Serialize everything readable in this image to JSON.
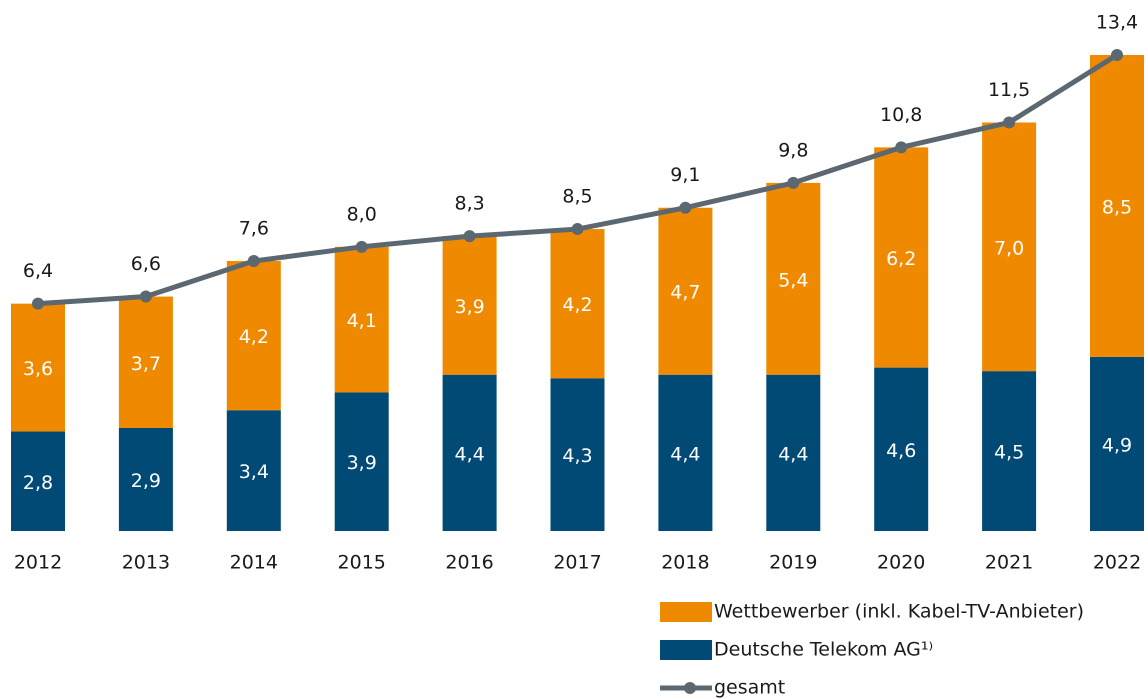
{
  "chart_data": {
    "type": "bar",
    "stacked": true,
    "categories": [
      "2012",
      "2013",
      "2014",
      "2015",
      "2016",
      "2017",
      "2018",
      "2019",
      "2020",
      "2021",
      "2022"
    ],
    "series": [
      {
        "name": "Deutsche Telekom AG¹⁾",
        "color": "#004a75",
        "values": [
          2.8,
          2.9,
          3.4,
          3.9,
          4.4,
          4.3,
          4.4,
          4.4,
          4.6,
          4.5,
          4.9
        ],
        "value_labels": [
          "2,8",
          "2,9",
          "3,4",
          "3,9",
          "4,4",
          "4,3",
          "4,4",
          "4,4",
          "4,6",
          "4,5",
          "4,9"
        ]
      },
      {
        "name": "Wettbewerber (inkl. Kabel-TV-Anbieter)",
        "color": "#ef8a00",
        "values": [
          3.6,
          3.7,
          4.2,
          4.1,
          3.9,
          4.2,
          4.7,
          5.4,
          6.2,
          7.0,
          8.5
        ],
        "value_labels": [
          "3,6",
          "3,7",
          "4,2",
          "4,1",
          "3,9",
          "4,2",
          "4,7",
          "5,4",
          "6,2",
          "7,0",
          "8,5"
        ]
      },
      {
        "name": "gesamt",
        "type": "line",
        "color": "#5b6872",
        "values": [
          6.4,
          6.6,
          7.6,
          8.0,
          8.3,
          8.5,
          9.1,
          9.8,
          10.8,
          11.5,
          13.4
        ],
        "value_labels": [
          "6,4",
          "6,6",
          "7,6",
          "8,0",
          "8,3",
          "8,5",
          "9,1",
          "9,8",
          "10,8",
          "11,5",
          "13,4"
        ]
      }
    ]
  }
}
